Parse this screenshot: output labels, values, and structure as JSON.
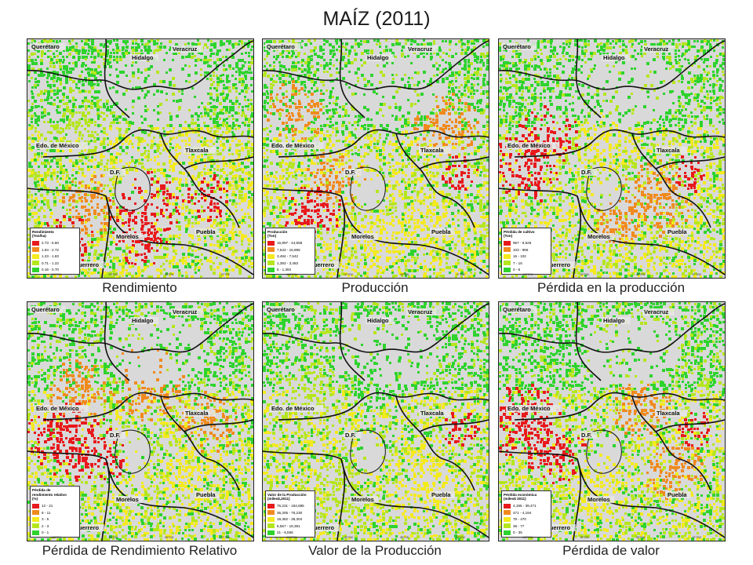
{
  "title": "MAÍZ (2011)",
  "colors": {
    "c1": "#e8191c",
    "c2": "#f08a1e",
    "c3": "#f4ea1c",
    "c4": "#b5e61d",
    "c5": "#2ed32e",
    "background": "#d9d9d9"
  },
  "places": [
    "Querétaro",
    "Hidalgo",
    "Veracruz",
    "Edo. de México",
    "Tlaxcala",
    "D.F.",
    "Morelos",
    "Puebla",
    "Guerrero"
  ],
  "coord_labels": [
    "100°0'W",
    "99°0'W",
    "98°0'W",
    "97°0'W"
  ],
  "panels": [
    {
      "id": "rendimiento",
      "caption": "Rendimiento",
      "legend_title": [
        "Rendimiento",
        "(Ton/ha)"
      ],
      "legend": [
        "2.73 - 5.50",
        "1.84 - 2.72",
        "1.23 - 1.83",
        "0.71 - 1.22",
        "0.16 - 0.70"
      ]
    },
    {
      "id": "produccion",
      "caption": "Producción",
      "legend_title": [
        "Producción",
        "(Ton)"
      ],
      "legend": [
        "16,897 - 44,558",
        "7,543 - 16,896",
        "3,484 - 7,542",
        "1,393 - 3,483",
        "5 - 1,392"
      ]
    },
    {
      "id": "perdida-produccion",
      "caption": "Pérdida en la producción",
      "legend_title": [
        "Pérdida de cultivo",
        "(Ton)"
      ],
      "legend": [
        "967 - 9,525",
        "103 - 966",
        "16 - 102",
        "7 - 15",
        "0 - 6"
      ]
    },
    {
      "id": "perdida-rendimiento",
      "caption": "Pérdida de Rendimiento Relativo",
      "legend_title": [
        "Pérdida de",
        "rendimiento relativo",
        "(%)"
      ],
      "legend": [
        "12 - 21",
        "6 - 11",
        "3 - 5",
        "2 - 3",
        "0 - 1"
      ]
    },
    {
      "id": "valor-produccion",
      "caption": "Valor de la Producción",
      "legend_title": [
        "Valor de la Producción",
        "(miles$,2011)"
      ],
      "legend": [
        "76,231 - 184,685",
        "36,305 - 76,230",
        "19,382 - 36,304",
        "6,557 - 19,381",
        "21 - 6,556"
      ]
    },
    {
      "id": "perdida-valor",
      "caption": "Pérdida de valor",
      "legend_title": [
        "Pérdida económica",
        "(miles$ 2011)"
      ],
      "legend": [
        "4,195 - 39,471",
        "471 - 4,194",
        "78 - 470",
        "36 - 77",
        "0 - 35"
      ]
    }
  ]
}
